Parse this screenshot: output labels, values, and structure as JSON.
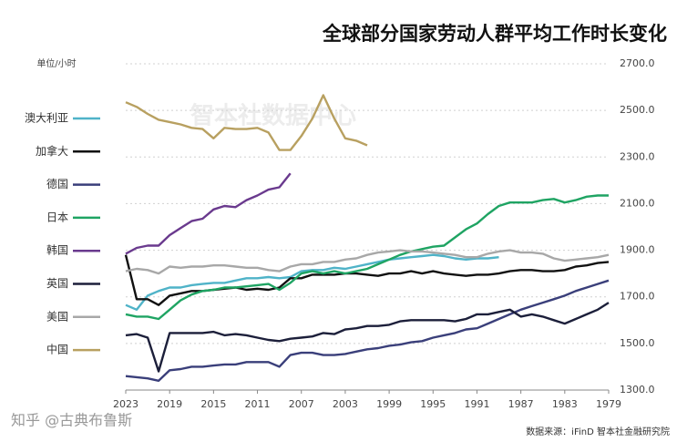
{
  "chart_data": {
    "type": "line",
    "title": "全球部分国家劳动人群平均工作时长变化",
    "y_axis_label": "单位/小时",
    "source": "数据来源：iFinD 智本社金融研究院",
    "watermark": "知乎 @古典布鲁斯",
    "background_watermark": "智本社数据中心",
    "x": [
      2023,
      2022,
      2021,
      2020,
      2019,
      2018,
      2017,
      2016,
      2015,
      2014,
      2013,
      2012,
      2011,
      2010,
      2009,
      2008,
      2007,
      2006,
      2005,
      2004,
      2003,
      2002,
      2001,
      2000,
      1999,
      1998,
      1997,
      1996,
      1995,
      1994,
      1993,
      1992,
      1991,
      1990,
      1989,
      1988,
      1987,
      1986,
      1985,
      1984,
      1983,
      1982,
      1981,
      1980,
      1979
    ],
    "xlim": [
      2023,
      1979
    ],
    "xticks": [
      2023,
      2019,
      2015,
      2011,
      2007,
      2003,
      1999,
      1995,
      1991,
      1987,
      1983,
      1979
    ],
    "ylim": [
      1300,
      2700
    ],
    "yticks": [
      {
        "value": 1300,
        "label": "1300.0"
      },
      {
        "value": 1500,
        "label": "1500.0"
      },
      {
        "value": 1700,
        "label": "1700.0"
      },
      {
        "value": 1900,
        "label": "1900.0"
      },
      {
        "value": 2100,
        "label": "2100.0"
      },
      {
        "value": 2300,
        "label": "2300.0"
      },
      {
        "value": 2500,
        "label": "2500.0"
      },
      {
        "value": 2700,
        "label": "2700.0"
      }
    ],
    "grid": true,
    "legend": "left",
    "series": [
      {
        "name": "澳大利亚",
        "color": "#4fb3c8",
        "values": [
          1665,
          1645,
          1705,
          1725,
          1740,
          1740,
          1750,
          1755,
          1760,
          1760,
          1770,
          1780,
          1780,
          1785,
          1780,
          1785,
          1810,
          1815,
          1815,
          1825,
          1820,
          1830,
          1840,
          1850,
          1860,
          1865,
          1870,
          1875,
          1880,
          1875,
          1865,
          1860,
          1865,
          1865,
          1870,
          null,
          null,
          null,
          null,
          null,
          null,
          null,
          null,
          null,
          null
        ]
      },
      {
        "name": "加拿大",
        "color": "#111111",
        "values": [
          1880,
          1690,
          1690,
          1665,
          1705,
          1715,
          1725,
          1725,
          1730,
          1735,
          1740,
          1730,
          1735,
          1730,
          1740,
          1780,
          1780,
          1795,
          1795,
          1795,
          1800,
          1800,
          1795,
          1790,
          1800,
          1800,
          1810,
          1800,
          1810,
          1800,
          1795,
          1790,
          1795,
          1795,
          1800,
          1810,
          1815,
          1815,
          1810,
          1810,
          1815,
          1830,
          1835,
          1845,
          1850
        ]
      },
      {
        "name": "德国",
        "color": "#3a3f7a",
        "values": [
          1360,
          1355,
          1350,
          1340,
          1385,
          1390,
          1400,
          1400,
          1405,
          1410,
          1410,
          1420,
          1420,
          1420,
          1400,
          1450,
          1460,
          1460,
          1450,
          1450,
          1455,
          1465,
          1475,
          1480,
          1490,
          1495,
          1505,
          1510,
          1525,
          1535,
          1545,
          1560,
          1565,
          1585,
          1605,
          1625,
          1645,
          1660,
          1675,
          1690,
          1705,
          1725,
          1740,
          1755,
          1770
        ]
      },
      {
        "name": "日本",
        "color": "#1fa463",
        "values": [
          1625,
          1615,
          1615,
          1605,
          1645,
          1685,
          1710,
          1725,
          1730,
          1740,
          1740,
          1745,
          1750,
          1755,
          1730,
          1760,
          1800,
          1810,
          1800,
          1810,
          1800,
          1810,
          1820,
          1840,
          1860,
          1880,
          1895,
          1905,
          1915,
          1920,
          1955,
          1990,
          2015,
          2055,
          2090,
          2105,
          2105,
          2105,
          2115,
          2120,
          2105,
          2115,
          2130,
          2135,
          2135
        ]
      },
      {
        "name": "韩国",
        "color": "#6a3a8e",
        "values": [
          1885,
          1910,
          1920,
          1920,
          1965,
          1995,
          2025,
          2035,
          2075,
          2090,
          2085,
          2115,
          2135,
          2160,
          2170,
          2230,
          null,
          null,
          null,
          null,
          null,
          null,
          null,
          null,
          null,
          null,
          null,
          null,
          null,
          null,
          null,
          null,
          null,
          null,
          null,
          null,
          null,
          null,
          null,
          null,
          null,
          null,
          null,
          null,
          null
        ]
      },
      {
        "name": "英国",
        "color": "#1c1f3a",
        "values": [
          1535,
          1540,
          1525,
          1380,
          1545,
          1545,
          1545,
          1545,
          1550,
          1535,
          1540,
          1535,
          1525,
          1515,
          1510,
          1520,
          1525,
          1530,
          1545,
          1540,
          1560,
          1565,
          1575,
          1575,
          1580,
          1595,
          1600,
          1600,
          1600,
          1600,
          1595,
          1605,
          1625,
          1625,
          1635,
          1645,
          1615,
          1625,
          1615,
          1600,
          1585,
          1605,
          1625,
          1645,
          1675
        ]
      },
      {
        "name": "美国",
        "color": "#a8a8a8",
        "values": [
          1810,
          1820,
          1815,
          1800,
          1830,
          1825,
          1830,
          1830,
          1835,
          1835,
          1830,
          1825,
          1825,
          1815,
          1810,
          1830,
          1840,
          1840,
          1850,
          1850,
          1860,
          1865,
          1880,
          1890,
          1895,
          1900,
          1895,
          1895,
          1890,
          1885,
          1880,
          1870,
          1870,
          1885,
          1895,
          1900,
          1890,
          1890,
          1885,
          1865,
          1855,
          1860,
          1865,
          1870,
          1880
        ]
      },
      {
        "name": "中国",
        "color": "#b8a060",
        "values": [
          2535,
          2515,
          2485,
          2460,
          2450,
          2440,
          2425,
          2420,
          2380,
          2425,
          2420,
          2420,
          2425,
          2405,
          2330,
          2330,
          2390,
          2465,
          2565,
          2465,
          2380,
          2370,
          2350,
          null,
          null,
          null,
          null,
          null,
          null,
          null,
          null,
          null,
          null,
          null,
          null,
          null,
          null,
          null,
          null,
          null,
          null,
          null,
          null,
          null,
          null
        ]
      }
    ]
  }
}
